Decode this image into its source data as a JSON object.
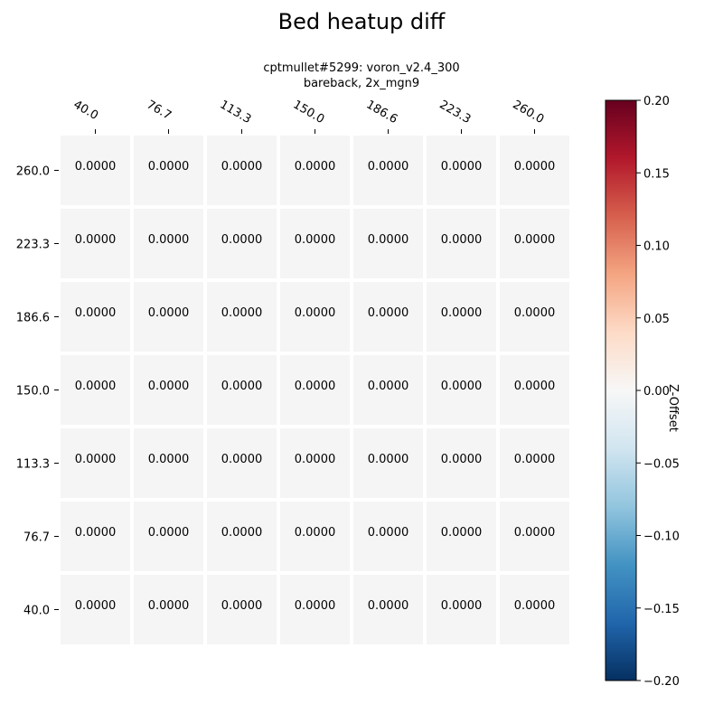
{
  "chart_data": {
    "type": "heatmap",
    "title": "Bed heatup diff",
    "subtitle_lines": [
      "cptmullet#5299: voron_v2.4_300",
      "bareback, 2x_mgn9"
    ],
    "x_ticks": [
      "40.0",
      "76.7",
      "113.3",
      "150.0",
      "186.6",
      "223.3",
      "260.0"
    ],
    "y_ticks": [
      "260.0",
      "223.3",
      "186.6",
      "150.0",
      "113.3",
      "76.7",
      "40.0"
    ],
    "values": [
      [
        0,
        0,
        0,
        0,
        0,
        0,
        0
      ],
      [
        0,
        0,
        0,
        0,
        0,
        0,
        0
      ],
      [
        0,
        0,
        0,
        0,
        0,
        0,
        0
      ],
      [
        0,
        0,
        0,
        0,
        0,
        0,
        0
      ],
      [
        0,
        0,
        0,
        0,
        0,
        0,
        0
      ],
      [
        0,
        0,
        0,
        0,
        0,
        0,
        0
      ],
      [
        0,
        0,
        0,
        0,
        0,
        0,
        0
      ]
    ],
    "value_format_decimals": 4,
    "colorbar": {
      "label": "Z-Offset",
      "range": [
        -0.2,
        0.2
      ],
      "ticks": [
        "0.20",
        "0.15",
        "0.10",
        "0.05",
        "0.00",
        "−0.05",
        "−0.10",
        "−0.15",
        "−0.20"
      ],
      "colormap": "RdBu_r",
      "colors": [
        "#053061",
        "#2166ac",
        "#4393c3",
        "#92c5de",
        "#d1e5f0",
        "#f7f7f7",
        "#fddbc7",
        "#f4a582",
        "#d6604d",
        "#b2182b",
        "#67001f"
      ]
    },
    "grid": false,
    "cell_color": "#f5f5f5"
  }
}
